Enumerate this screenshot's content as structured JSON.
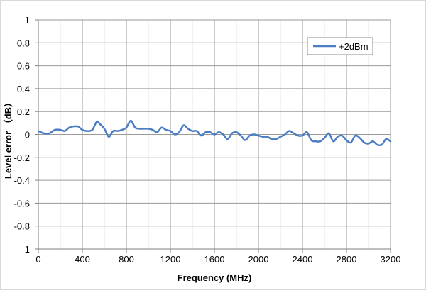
{
  "chart_data": {
    "type": "line",
    "title": "",
    "xlabel": "Frequency (MHz)",
    "ylabel": "Level error （dB）",
    "xlim": [
      0,
      3200
    ],
    "ylim": [
      -1,
      1
    ],
    "xticks": [
      0,
      400,
      800,
      1200,
      1600,
      2000,
      2400,
      2800,
      3200
    ],
    "yticks": [
      -1,
      -0.8,
      -0.6,
      -0.4,
      -0.2,
      0,
      0.2,
      0.4,
      0.6,
      0.8,
      1
    ],
    "grid": true,
    "legend_position": "top-right",
    "series": [
      {
        "name": "+2dBm",
        "color": "#4a7dc4",
        "x": [
          0,
          50,
          100,
          150,
          200,
          240,
          280,
          320,
          360,
          400,
          440,
          490,
          530,
          560,
          600,
          640,
          680,
          720,
          760,
          800,
          840,
          880,
          920,
          960,
          1000,
          1040,
          1080,
          1120,
          1160,
          1200,
          1240,
          1280,
          1320,
          1360,
          1400,
          1440,
          1480,
          1520,
          1560,
          1600,
          1640,
          1680,
          1720,
          1760,
          1800,
          1840,
          1880,
          1920,
          1960,
          2000,
          2040,
          2080,
          2120,
          2160,
          2200,
          2240,
          2280,
          2320,
          2360,
          2400,
          2440,
          2480,
          2520,
          2560,
          2600,
          2640,
          2680,
          2720,
          2760,
          2800,
          2840,
          2880,
          2920,
          2960,
          3000,
          3040,
          3080,
          3120,
          3160,
          3200
        ],
        "values": [
          0.03,
          0.01,
          0.01,
          0.04,
          0.04,
          0.03,
          0.06,
          0.07,
          0.07,
          0.04,
          0.03,
          0.04,
          0.11,
          0.09,
          0.05,
          -0.02,
          0.03,
          0.03,
          0.04,
          0.06,
          0.12,
          0.06,
          0.05,
          0.05,
          0.05,
          0.04,
          0.02,
          0.06,
          0.04,
          0.03,
          0.0,
          0.02,
          0.08,
          0.05,
          0.03,
          0.03,
          -0.01,
          0.02,
          0.02,
          0.0,
          0.02,
          0.0,
          -0.04,
          0.01,
          0.02,
          -0.01,
          -0.05,
          -0.01,
          0.0,
          -0.01,
          -0.02,
          -0.02,
          -0.04,
          -0.04,
          -0.02,
          0.0,
          0.03,
          0.01,
          -0.01,
          -0.01,
          0.02,
          -0.05,
          -0.06,
          -0.06,
          -0.03,
          0.01,
          -0.06,
          -0.02,
          -0.01,
          -0.05,
          -0.07,
          -0.01,
          -0.03,
          -0.07,
          -0.08,
          -0.06,
          -0.09,
          -0.09,
          -0.04,
          -0.06
        ]
      }
    ]
  }
}
